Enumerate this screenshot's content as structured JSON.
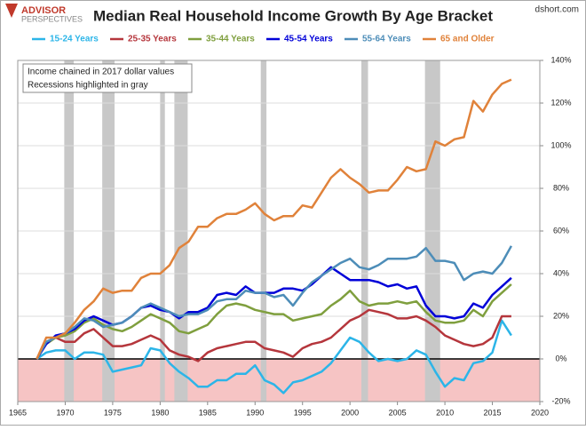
{
  "chart_data": {
    "type": "line",
    "title": "Median Real Household Income Growth By Age Bracket",
    "logo": [
      "ADVISOR",
      "PERSPECTIVES"
    ],
    "credit": "dshort.com",
    "annotations": [
      "Income chained in 2017 dollar values",
      "Recessions highlighted in gray"
    ],
    "x": [
      1967,
      1968,
      1969,
      1970,
      1971,
      1972,
      1973,
      1974,
      1975,
      1976,
      1977,
      1978,
      1979,
      1980,
      1981,
      1982,
      1983,
      1984,
      1985,
      1986,
      1987,
      1988,
      1989,
      1990,
      1991,
      1992,
      1993,
      1994,
      1995,
      1996,
      1997,
      1998,
      1999,
      2000,
      2001,
      2002,
      2003,
      2004,
      2005,
      2006,
      2007,
      2008,
      2009,
      2010,
      2011,
      2012,
      2013,
      2014,
      2015,
      2016,
      2017
    ],
    "series": [
      {
        "name": "15-24 Years",
        "color": "#2cb5e8",
        "values": [
          0,
          3,
          4,
          4,
          0,
          3,
          3,
          2,
          -6,
          -5,
          -4,
          -3,
          5,
          4,
          -2,
          -6,
          -9,
          -13,
          -13,
          -10,
          -10,
          -7,
          -7,
          -3,
          -10,
          -12,
          -16,
          -11,
          -10,
          -8,
          -6,
          -2,
          4,
          10,
          8,
          3,
          -1,
          0,
          -1,
          0,
          4,
          2,
          -6,
          -13,
          -9,
          -10,
          -2,
          -1,
          3,
          18,
          11
        ]
      },
      {
        "name": "25-35 Years",
        "color": "#b5363c",
        "values": [
          0,
          8,
          10,
          8,
          8,
          12,
          14,
          10,
          6,
          6,
          7,
          9,
          11,
          9,
          4,
          2,
          1,
          -1,
          3,
          5,
          6,
          7,
          8,
          8,
          5,
          4,
          3,
          1,
          5,
          7,
          8,
          10,
          14,
          18,
          20,
          23,
          22,
          21,
          19,
          19,
          20,
          18,
          15,
          11,
          9,
          7,
          6,
          7,
          10,
          20,
          20
        ]
      },
      {
        "name": "35-44 Years",
        "color": "#7f9f3e",
        "values": [
          0,
          7,
          10,
          11,
          13,
          17,
          19,
          16,
          14,
          13,
          15,
          18,
          21,
          19,
          17,
          13,
          12,
          14,
          16,
          21,
          25,
          26,
          25,
          23,
          22,
          21,
          21,
          18,
          19,
          20,
          21,
          25,
          28,
          32,
          27,
          25,
          26,
          26,
          27,
          26,
          27,
          22,
          18,
          17,
          17,
          18,
          23,
          20,
          27,
          31,
          35
        ]
      },
      {
        "name": "45-54 Years",
        "color": "#0000d8",
        "values": [
          0,
          7,
          11,
          12,
          14,
          18,
          20,
          18,
          16,
          17,
          20,
          24,
          25,
          23,
          22,
          19,
          22,
          22,
          24,
          30,
          31,
          30,
          34,
          31,
          31,
          31,
          33,
          33,
          32,
          35,
          39,
          43,
          40,
          37,
          37,
          37,
          36,
          34,
          35,
          33,
          34,
          25,
          20,
          20,
          19,
          20,
          26,
          24,
          30,
          34,
          38
        ]
      },
      {
        "name": "55-64 Years",
        "color": "#4d8db8",
        "values": [
          0,
          8,
          10,
          12,
          15,
          19,
          18,
          15,
          16,
          17,
          20,
          24,
          26,
          24,
          22,
          20,
          21,
          21,
          23,
          27,
          28,
          28,
          32,
          31,
          31,
          29,
          30,
          25,
          31,
          36,
          39,
          42,
          45,
          47,
          43,
          42,
          44,
          47,
          47,
          47,
          48,
          52,
          46,
          46,
          45,
          37,
          40,
          41,
          40,
          45,
          53
        ]
      },
      {
        "name": "65 and Older",
        "color": "#e0823a",
        "values": [
          0,
          10,
          10,
          12,
          17,
          23,
          27,
          33,
          31,
          32,
          32,
          38,
          40,
          40,
          44,
          52,
          55,
          62,
          62,
          66,
          68,
          68,
          70,
          73,
          68,
          65,
          67,
          67,
          72,
          71,
          78,
          85,
          89,
          85,
          82,
          78,
          79,
          79,
          84,
          90,
          88,
          89,
          102,
          100,
          103,
          104,
          121,
          116,
          124,
          129,
          131
        ]
      }
    ],
    "recessions": [
      [
        1969.9,
        1970.9
      ],
      [
        1973.9,
        1975.2
      ],
      [
        1980.0,
        1980.5
      ],
      [
        1981.5,
        1982.9
      ],
      [
        1990.6,
        1991.2
      ],
      [
        2001.2,
        2001.9
      ],
      [
        2007.9,
        2009.5
      ]
    ],
    "recession_color": "#c8c8c8",
    "negative_color": "#f6c4c4",
    "xlim": [
      1965,
      2020
    ],
    "xticks": [
      1965,
      1970,
      1975,
      1980,
      1985,
      1990,
      1995,
      2000,
      2005,
      2010,
      2015,
      2020
    ],
    "ylim": [
      -20,
      140
    ],
    "yticks": [
      {
        "value": -20,
        "label": "-20%"
      },
      {
        "value": 0,
        "label": "0%"
      },
      {
        "value": 20,
        "label": "20%"
      },
      {
        "value": 40,
        "label": "40%"
      },
      {
        "value": 60,
        "label": "60%"
      },
      {
        "value": 80,
        "label": "80%"
      },
      {
        "value": 100,
        "label": "100%"
      },
      {
        "value": 120,
        "label": "120%"
      },
      {
        "value": 140,
        "label": "140%"
      }
    ],
    "grid": true
  }
}
